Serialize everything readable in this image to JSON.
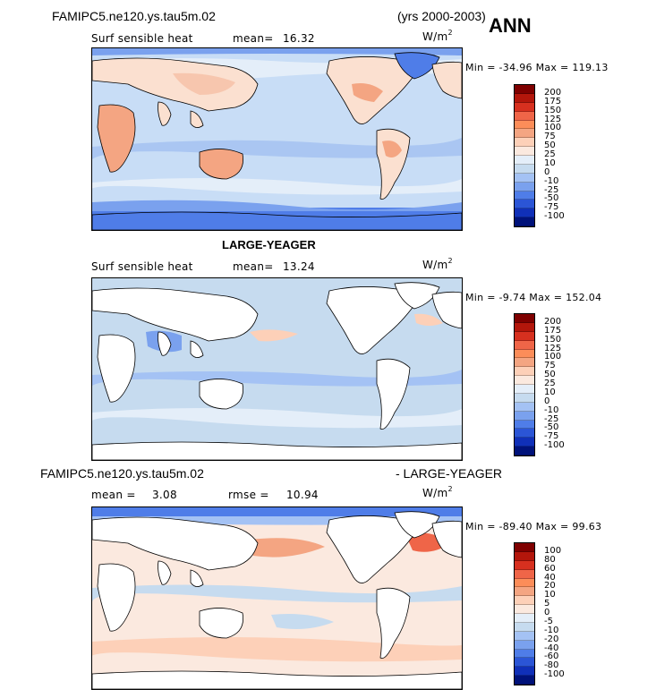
{
  "header": {
    "run_a": "FAMIPC5.ne120.ys.tau5m.02",
    "years": "(yrs 2000-2003)",
    "season": "ANN"
  },
  "panel1": {
    "variable": "Surf sensible heat",
    "mean_label": "mean=",
    "mean_value": "16.32",
    "units_base": "W/m",
    "units_exp": "2",
    "min_label": "Min =",
    "min_value": "-34.96",
    "max_label": "Max =",
    "max_value": "119.13"
  },
  "panel2": {
    "title": "LARGE-YEAGER",
    "variable": "Surf sensible heat",
    "mean_label": "mean=",
    "mean_value": "13.24",
    "units_base": "W/m",
    "units_exp": "2",
    "min_label": "Min =",
    "min_value": "-9.74",
    "max_label": "Max =",
    "max_value": "152.04"
  },
  "panel3": {
    "title_left": "FAMIPC5.ne120.ys.tau5m.02",
    "title_right": "- LARGE-YEAGER",
    "mean_label": "mean =",
    "mean_value": "3.08",
    "rmse_label": "rmse =",
    "rmse_value": "10.94",
    "units_base": "W/m",
    "units_exp": "2",
    "min_label": "Min =",
    "min_value": "-89.40",
    "max_label": "Max =",
    "max_value": "99.63"
  },
  "colorbar_abs": {
    "labels": [
      "200",
      "175",
      "150",
      "125",
      "100",
      "75",
      "50",
      "25",
      "10",
      "0",
      "-10",
      "-25",
      "-50",
      "-75",
      "-100"
    ],
    "colors": [
      "#7f0000",
      "#b3160b",
      "#d7301f",
      "#ef6548",
      "#fc8d59",
      "#f4a582",
      "#fdd0b8",
      "#fbe9df",
      "#e4eef9",
      "#c6dbef",
      "#a4c2f4",
      "#7aa1ee",
      "#4f7de8",
      "#2b55d6",
      "#1030b8",
      "#00127a"
    ]
  },
  "colorbar_diff": {
    "labels": [
      "100",
      "80",
      "60",
      "40",
      "20",
      "10",
      "5",
      "0",
      "-5",
      "-10",
      "-20",
      "-40",
      "-60",
      "-80",
      "-100"
    ],
    "colors": [
      "#7f0000",
      "#b3160b",
      "#d7301f",
      "#ef6548",
      "#fc8d59",
      "#f4a582",
      "#fdd0b8",
      "#fbe9df",
      "#e4eef9",
      "#c6dbef",
      "#a4c2f4",
      "#7aa1ee",
      "#4f7de8",
      "#2b55d6",
      "#1030b8",
      "#00127a"
    ]
  }
}
